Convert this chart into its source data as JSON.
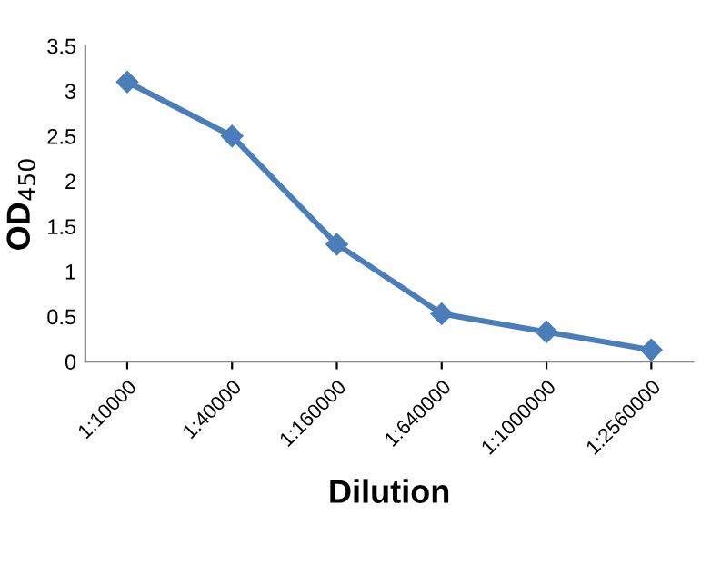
{
  "chart_data": {
    "type": "line",
    "xlabel": "Dilution",
    "ylabel": "OD$_{450}$",
    "categories": [
      "1:10000",
      "1:40000",
      "1:160000",
      "1:640000",
      "1:1000000",
      "1:2560000"
    ],
    "series": [
      {
        "color": "#4a7ebb",
        "values": [
          3.1,
          2.5,
          1.3,
          0.53,
          0.33,
          0.13
        ]
      }
    ],
    "ylim": [
      0,
      3.5
    ],
    "yticks": [
      0,
      0.5,
      1,
      1.5,
      2,
      2.5,
      3,
      3.5
    ],
    "grid": false,
    "legend": false,
    "marker": "diamond",
    "line_style": "solid"
  }
}
